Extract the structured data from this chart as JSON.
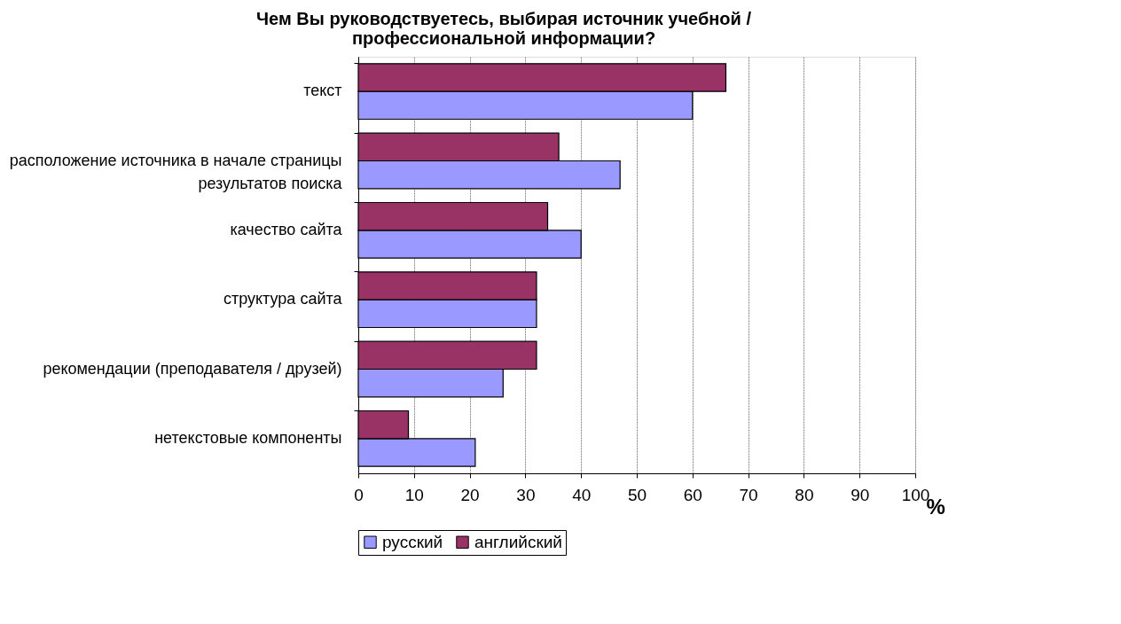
{
  "chart_data": {
    "type": "bar",
    "orientation": "horizontal",
    "title": "Чем Вы руководствуетесь, выбирая источник учебной /\nпрофессиональной информации?",
    "xlabel": "%",
    "categories": [
      "текст",
      "расположение источника в начале страницы\nрезультатов поиска",
      "качество сайта",
      "структура сайта",
      "рекомендации (преподавателя / друзей)",
      "нетекстовые компоненты"
    ],
    "series": [
      {
        "name": "русский",
        "color": "#9999ff",
        "values": [
          60,
          47,
          40,
          32,
          26,
          21
        ]
      },
      {
        "name": "английский",
        "color": "#993366",
        "values": [
          66,
          36,
          34,
          32,
          32,
          9
        ]
      }
    ],
    "xlim": [
      0,
      100
    ],
    "xticks": [
      0,
      10,
      20,
      30,
      40,
      50,
      60,
      70,
      80,
      90,
      100
    ],
    "grid": "x",
    "legend": "bottom"
  }
}
